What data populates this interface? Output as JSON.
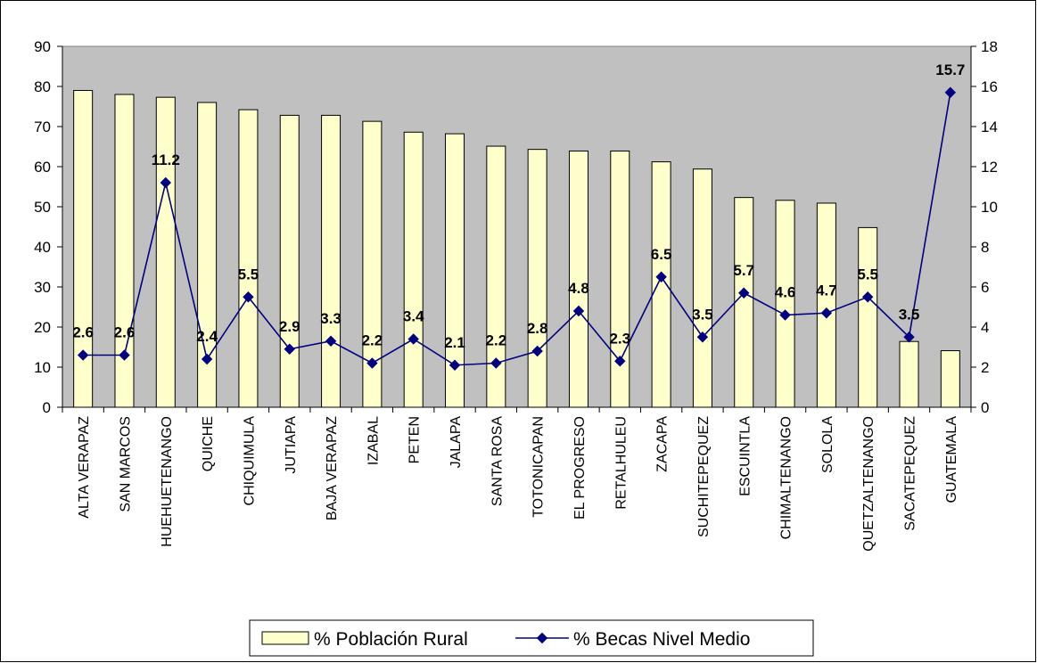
{
  "chart_data": {
    "type": "bar",
    "categories": [
      "ALTA VERAPAZ",
      "SAN MARCOS",
      "HUEHUETENANGO",
      "QUICHE",
      "CHIQUIMULA",
      "JUTIAPA",
      "BAJA VERAPAZ",
      "IZABAL",
      "PETEN",
      "JALAPA",
      "SANTA ROSA",
      "TOTONICAPAN",
      "EL PROGRESO",
      "RETALHULEU",
      "ZACAPA",
      "SUCHITEPEQUEZ",
      "ESCUINTLA",
      "CHIMALTENANGO",
      "SOLOLA",
      "QUETZALTENANGO",
      "SACATEPEQUEZ",
      "GUATEMALA"
    ],
    "series": [
      {
        "name": "% Población Rural",
        "type": "bar",
        "axis": "left",
        "color": "#FFFFCC",
        "values": [
          79,
          78,
          77.3,
          76,
          74.2,
          72.8,
          72.8,
          71.3,
          68.6,
          68.2,
          65.1,
          64.3,
          63.9,
          63.9,
          61.2,
          59.4,
          52.3,
          51.6,
          50.9,
          44.8,
          16.4,
          14.1
        ]
      },
      {
        "name": "% Becas Nivel Medio",
        "type": "line",
        "axis": "right",
        "color": "#000080",
        "marker": "diamond",
        "values": [
          2.6,
          2.6,
          11.2,
          2.4,
          5.5,
          2.9,
          3.3,
          2.2,
          3.4,
          2.1,
          2.2,
          2.8,
          4.8,
          2.3,
          6.5,
          3.5,
          5.7,
          4.6,
          4.7,
          5.5,
          3.5,
          15.7
        ],
        "data_labels": [
          "2.6",
          "2.6",
          "11.2",
          "2.4",
          "5.5",
          "2.9",
          "3.3",
          "2.2",
          "3.4",
          "2.1",
          "2.2",
          "2.8",
          "4.8",
          "2.3",
          "6.5",
          "3.5",
          "5.7",
          "4.6",
          "4.7",
          "5.5",
          "3.5",
          "15.7"
        ]
      }
    ],
    "y_left": {
      "min": 0,
      "max": 90,
      "ticks": [
        "0",
        "10",
        "20",
        "30",
        "40",
        "50",
        "60",
        "70",
        "80",
        "90"
      ]
    },
    "y_right": {
      "min": 0,
      "max": 18,
      "ticks": [
        "0",
        "2",
        "4",
        "6",
        "8",
        "10",
        "12",
        "14",
        "16",
        "18"
      ]
    },
    "plot_background": "#C0C0C0",
    "grid": false,
    "legend_position": "bottom"
  }
}
